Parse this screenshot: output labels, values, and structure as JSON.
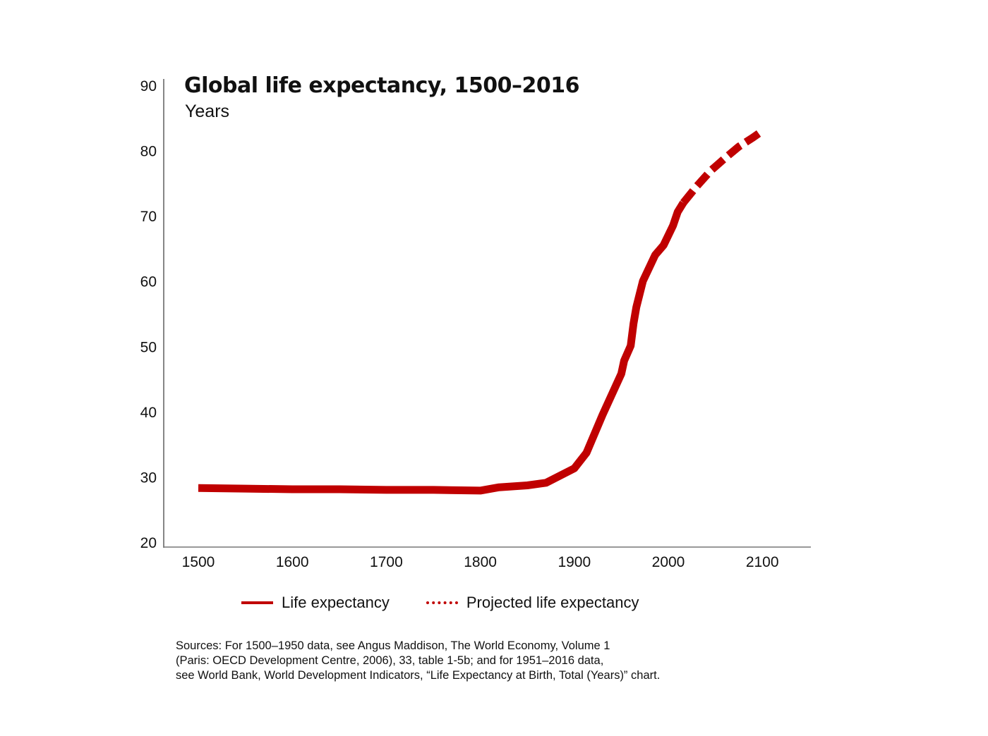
{
  "chart_data": {
    "type": "line",
    "title": "Global life expectancy, 1500–2016",
    "subtitle": "Years",
    "xlabel": "",
    "ylabel": "Years",
    "xlim": [
      1463,
      2150
    ],
    "ylim": [
      20,
      90
    ],
    "x_ticks": [
      1500,
      1600,
      1700,
      1800,
      1900,
      2000,
      2100
    ],
    "y_ticks": [
      20,
      30,
      40,
      50,
      60,
      70,
      80,
      90
    ],
    "grid": false,
    "legend_position": "bottom",
    "series": [
      {
        "name": "Life expectancy",
        "style": "solid",
        "color": "#c00000",
        "x": [
          1500,
          1550,
          1600,
          1650,
          1700,
          1750,
          1800,
          1820,
          1850,
          1870,
          1900,
          1913,
          1930,
          1950,
          1953,
          1960,
          1963,
          1966,
          1973,
          1986,
          1995,
          2005,
          2010,
          2016
        ],
        "y": [
          28.3,
          28.2,
          28.1,
          28.1,
          28.0,
          28.0,
          27.9,
          28.4,
          28.7,
          29.1,
          31.3,
          33.7,
          39.5,
          45.8,
          47.8,
          50.1,
          53.5,
          56.0,
          60.0,
          64.0,
          65.5,
          68.5,
          70.6,
          72.0
        ]
      },
      {
        "name": "Projected life expectancy",
        "style": "dashed",
        "color": "#c00000",
        "x": [
          2016,
          2030,
          2045,
          2060,
          2075,
          2090,
          2100
        ],
        "y": [
          72.0,
          74.5,
          76.9,
          78.8,
          80.6,
          82.0,
          83.0
        ]
      }
    ]
  },
  "legend": {
    "items": [
      {
        "label": "Life expectancy"
      },
      {
        "label": "Projected life expectancy"
      }
    ]
  },
  "source_note": {
    "lines": [
      "Sources: For 1500–1950 data, see Angus Maddison, The World Economy, Volume 1",
      "(Paris: OECD Development Centre, 2006), 33, table 1-5b; and for 1951–2016 data,",
      "see World Bank, World Development Indicators, “Life Expectancy at Birth, Total (Years)” chart."
    ]
  }
}
